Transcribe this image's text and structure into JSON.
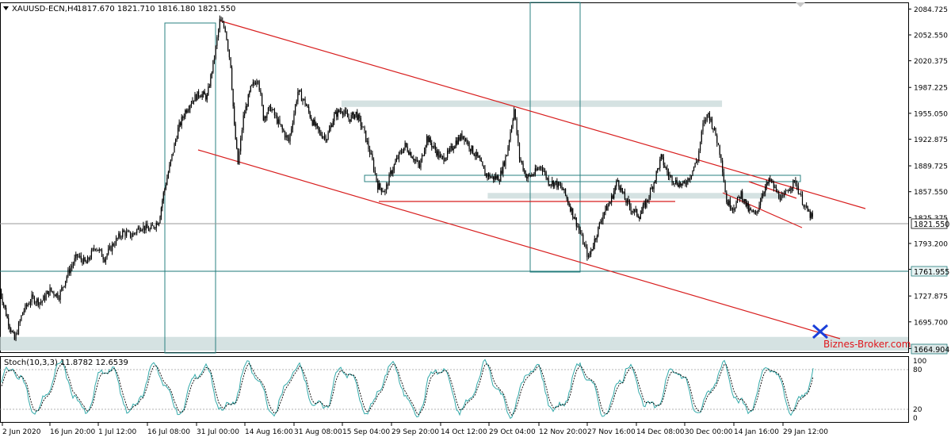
{
  "header": {
    "symbol": "XAUUSD-ECN,H4",
    "ohlc": "1817.670 1821.710 1816.180 1821.550"
  },
  "stoch_header": "Stoch(10,3,3) 11.8782 12.6539",
  "watermark": "Biznes-Broker.com",
  "colors": {
    "candle": "#000000",
    "channel": "#d81e1e",
    "zone": "#c7d8d8",
    "hline": "#1e7878",
    "grid": "#c8c8c8",
    "stoch_main": "#33aaaa",
    "stoch_signal": "#000000",
    "target_mark": "#1a3fd9"
  },
  "icons": {
    "collapse": "triangle-down-icon",
    "target": "x-mark-icon"
  },
  "chart_data": {
    "type": "candlestick",
    "symbol": "XAUUSD-ECN",
    "timeframe": "H4",
    "y_ticks": [
      "2084.725",
      "2052.550",
      "2020.375",
      "1987.225",
      "1955.050",
      "1922.875",
      "1889.725",
      "1857.550",
      "1825.375",
      "1793.200",
      "1761.025",
      "1727.875",
      "1695.700",
      "1662.525"
    ],
    "ylim": [
      1658,
      2092
    ],
    "x_ticks": [
      "2 Jun 2020",
      "16 Jun 20:00",
      "1 Jul 12:00",
      "16 Jul 08:00",
      "31 Jul 00:00",
      "14 Aug 16:00",
      "31 Aug 08:00",
      "15 Sep 04:00",
      "29 Sep 20:00",
      "14 Oct 12:00",
      "29 Oct 04:00",
      "12 Nov 20:00",
      "27 Nov 16:00",
      "14 Dec 08:00",
      "30 Dec 00:00",
      "14 Jan 16:00",
      "29 Jan 12:00"
    ],
    "price_badges": {
      "current": "1821.550",
      "support": "1761.955",
      "low_zone": "1664.904"
    },
    "horizontal_levels": [
      1821.55,
      1761.955
    ],
    "zones": [
      {
        "from_x": 0.0,
        "to_x": 1.0,
        "y_top": 1677,
        "y_bottom": 1660
      },
      {
        "from_x": 0.376,
        "to_x": 0.795,
        "y_top": 1971,
        "y_bottom": 1963
      },
      {
        "from_x": 0.537,
        "to_x": 0.866,
        "y_top": 1856,
        "y_bottom": 1849
      }
    ],
    "path_points": [
      [
        0.0,
        1735
      ],
      [
        0.008,
        1700
      ],
      [
        0.016,
        1673
      ],
      [
        0.025,
        1708
      ],
      [
        0.035,
        1725
      ],
      [
        0.045,
        1720
      ],
      [
        0.055,
        1735
      ],
      [
        0.065,
        1728
      ],
      [
        0.075,
        1757
      ],
      [
        0.085,
        1778
      ],
      [
        0.095,
        1768
      ],
      [
        0.105,
        1790
      ],
      [
        0.115,
        1775
      ],
      [
        0.125,
        1793
      ],
      [
        0.135,
        1807
      ],
      [
        0.145,
        1803
      ],
      [
        0.155,
        1815
      ],
      [
        0.165,
        1810
      ],
      [
        0.175,
        1822
      ],
      [
        0.18,
        1855
      ],
      [
        0.188,
        1895
      ],
      [
        0.196,
        1935
      ],
      [
        0.204,
        1958
      ],
      [
        0.212,
        1972
      ],
      [
        0.22,
        1980
      ],
      [
        0.228,
        1975
      ],
      [
        0.236,
        2025
      ],
      [
        0.242,
        2070
      ],
      [
        0.248,
        2060
      ],
      [
        0.254,
        2015
      ],
      [
        0.258,
        1938
      ],
      [
        0.262,
        1892
      ],
      [
        0.268,
        1950
      ],
      [
        0.276,
        1985
      ],
      [
        0.284,
        2000
      ],
      [
        0.29,
        1950
      ],
      [
        0.298,
        1962
      ],
      [
        0.308,
        1940
      ],
      [
        0.318,
        1920
      ],
      [
        0.328,
        1982
      ],
      [
        0.336,
        1968
      ],
      [
        0.344,
        1945
      ],
      [
        0.352,
        1930
      ],
      [
        0.36,
        1925
      ],
      [
        0.368,
        1952
      ],
      [
        0.376,
        1960
      ],
      [
        0.384,
        1948
      ],
      [
        0.392,
        1955
      ],
      [
        0.4,
        1935
      ],
      [
        0.41,
        1895
      ],
      [
        0.416,
        1865
      ],
      [
        0.424,
        1858
      ],
      [
        0.43,
        1880
      ],
      [
        0.438,
        1900
      ],
      [
        0.446,
        1915
      ],
      [
        0.454,
        1902
      ],
      [
        0.462,
        1888
      ],
      [
        0.47,
        1925
      ],
      [
        0.478,
        1912
      ],
      [
        0.486,
        1898
      ],
      [
        0.494,
        1905
      ],
      [
        0.502,
        1920
      ],
      [
        0.51,
        1928
      ],
      [
        0.518,
        1912
      ],
      [
        0.526,
        1900
      ],
      [
        0.534,
        1880
      ],
      [
        0.542,
        1875
      ],
      [
        0.55,
        1875
      ],
      [
        0.558,
        1905
      ],
      [
        0.566,
        1960
      ],
      [
        0.572,
        1900
      ],
      [
        0.58,
        1875
      ],
      [
        0.588,
        1880
      ],
      [
        0.596,
        1890
      ],
      [
        0.604,
        1870
      ],
      [
        0.612,
        1868
      ],
      [
        0.62,
        1860
      ],
      [
        0.628,
        1838
      ],
      [
        0.636,
        1815
      ],
      [
        0.642,
        1795
      ],
      [
        0.648,
        1775
      ],
      [
        0.656,
        1802
      ],
      [
        0.664,
        1830
      ],
      [
        0.672,
        1845
      ],
      [
        0.68,
        1872
      ],
      [
        0.688,
        1848
      ],
      [
        0.696,
        1835
      ],
      [
        0.704,
        1828
      ],
      [
        0.712,
        1845
      ],
      [
        0.72,
        1870
      ],
      [
        0.728,
        1900
      ],
      [
        0.736,
        1878
      ],
      [
        0.744,
        1870
      ],
      [
        0.752,
        1865
      ],
      [
        0.76,
        1878
      ],
      [
        0.768,
        1898
      ],
      [
        0.774,
        1940
      ],
      [
        0.78,
        1955
      ],
      [
        0.788,
        1928
      ],
      [
        0.794,
        1900
      ],
      [
        0.8,
        1845
      ],
      [
        0.808,
        1838
      ],
      [
        0.816,
        1855
      ],
      [
        0.824,
        1835
      ],
      [
        0.832,
        1828
      ],
      [
        0.84,
        1858
      ],
      [
        0.848,
        1872
      ],
      [
        0.856,
        1855
      ],
      [
        0.862,
        1848
      ],
      [
        0.868,
        1862
      ],
      [
        0.876,
        1870
      ],
      [
        0.882,
        1850
      ],
      [
        0.888,
        1835
      ],
      [
        0.896,
        1822
      ]
    ],
    "stoch_levels": [
      20,
      80
    ],
    "stoch_range": [
      0,
      100
    ]
  }
}
